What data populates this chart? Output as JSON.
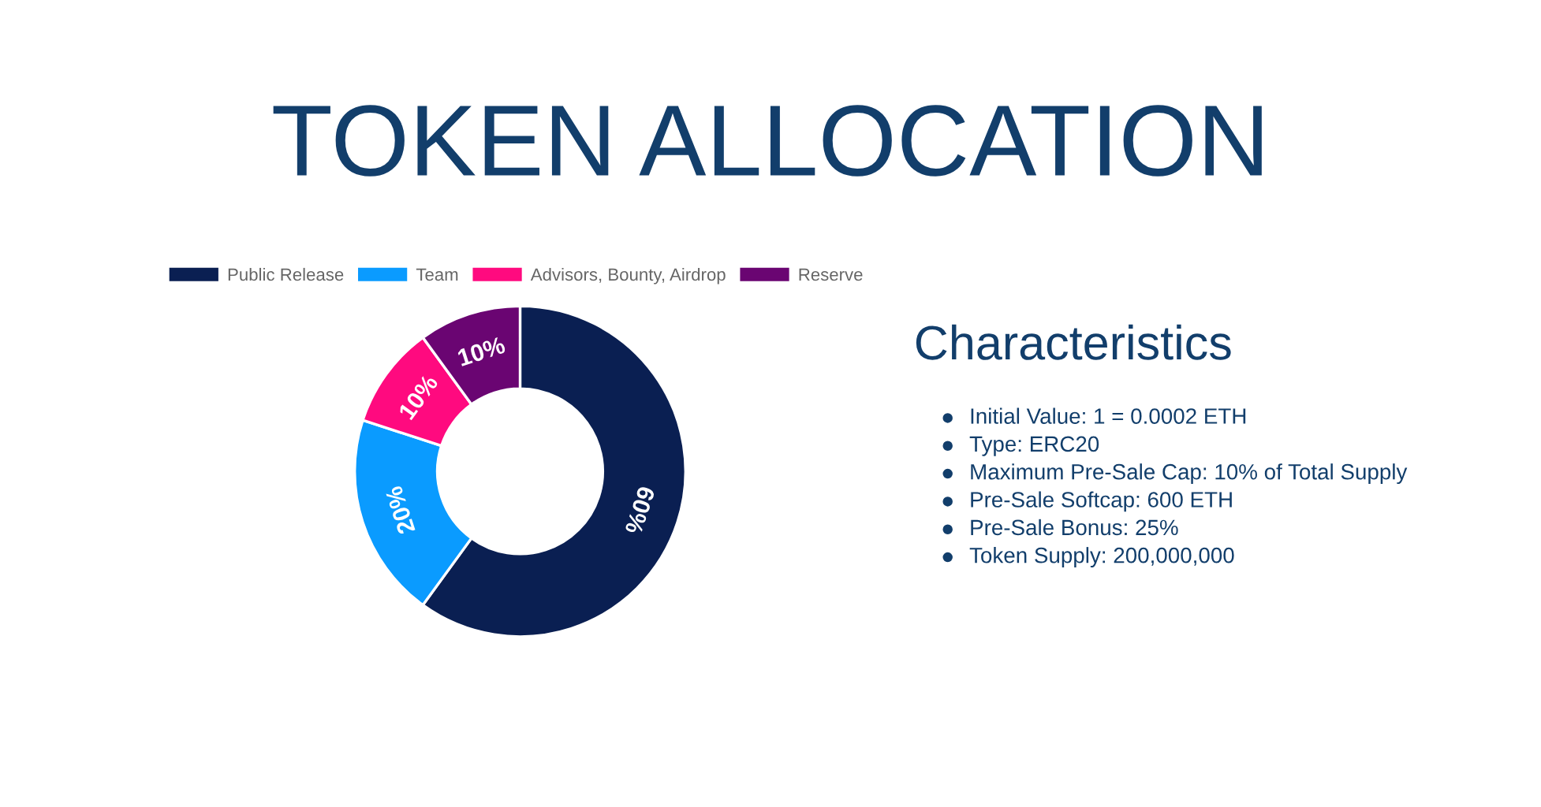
{
  "chart_data": [
    {
      "type": "donut",
      "title": "TOKEN ALLOCATION",
      "categories": [
        "Public Release",
        "Team",
        "Advisors, Bounty, Airdrop",
        "Reserve"
      ],
      "values": [
        60,
        20,
        10,
        10
      ],
      "colors": [
        "#0a1f52",
        "#0a9bff",
        "#ff0a7f",
        "#6a0572"
      ],
      "value_labels": [
        "60%",
        "20%",
        "10%",
        "10%"
      ],
      "legend": "top"
    },
    {
      "type": "other",
      "title": "Characteristics",
      "annotations": [
        "Initial Value: 1 = 0.0002 ETH",
        "Type: ERC20",
        "Maximum Pre-Sale Cap: 10% of Total Supply",
        "Pre-Sale Softcap: 600 ETH",
        "Pre-Sale Bonus: 25%",
        "Token Supply: 200,000,000"
      ]
    }
  ]
}
